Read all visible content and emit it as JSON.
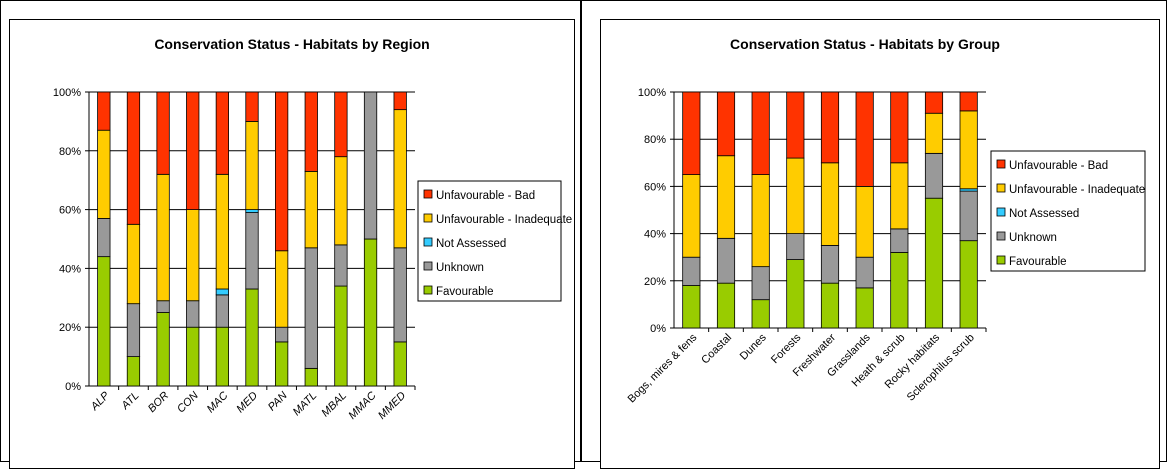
{
  "colors": {
    "Unfavourable - Bad": "#ff3300",
    "Unfavourable - Inadequate": "#ffcc00",
    "Not Assessed": "#33ccff",
    "Unknown": "#999999",
    "Favourable": "#99cc00"
  },
  "chart_data": [
    {
      "type": "bar",
      "stacked": true,
      "title": "Conservation Status - Habitats by Region",
      "categories": [
        "ALP",
        "ATL",
        "BOR",
        "CON",
        "MAC",
        "MED",
        "PAN",
        "MATL",
        "MBAL",
        "MMAC",
        "MMED"
      ],
      "yticks": [
        "0%",
        "20%",
        "40%",
        "60%",
        "80%",
        "100%"
      ],
      "ylim": [
        0,
        100
      ],
      "legend_position": "right",
      "series": [
        {
          "name": "Favourable",
          "values": [
            44,
            10,
            25,
            20,
            20,
            33,
            15,
            6,
            34,
            50,
            15
          ]
        },
        {
          "name": "Unknown",
          "values": [
            13,
            18,
            4,
            9,
            11,
            26,
            5,
            41,
            14,
            50,
            32
          ]
        },
        {
          "name": "Not Assessed",
          "values": [
            0,
            0,
            0,
            0,
            2,
            1,
            0,
            0,
            0,
            0,
            0
          ]
        },
        {
          "name": "Unfavourable - Inadequate",
          "values": [
            30,
            27,
            43,
            31,
            39,
            30,
            26,
            26,
            30,
            0,
            47
          ]
        },
        {
          "name": "Unfavourable - Bad",
          "values": [
            13,
            45,
            28,
            40,
            28,
            10,
            54,
            27,
            22,
            0,
            6
          ]
        }
      ]
    },
    {
      "type": "bar",
      "stacked": true,
      "title": "Conservation Status - Habitats by Group",
      "categories": [
        "Bogs, mires & fens",
        "Coastal",
        "Dunes",
        "Forests",
        "Freshwater",
        "Grasslands",
        "Heath & scrub",
        "Rocky habitats",
        "Sclerophilus scrub"
      ],
      "yticks": [
        "0%",
        "20%",
        "40%",
        "60%",
        "80%",
        "100%"
      ],
      "ylim": [
        0,
        100
      ],
      "legend_position": "right",
      "series": [
        {
          "name": "Favourable",
          "values": [
            18,
            19,
            12,
            29,
            19,
            17,
            32,
            55,
            37
          ]
        },
        {
          "name": "Unknown",
          "values": [
            12,
            19,
            14,
            11,
            16,
            13,
            10,
            19,
            21
          ]
        },
        {
          "name": "Not Assessed",
          "values": [
            0,
            0,
            0,
            0,
            0,
            0,
            0,
            0,
            1
          ]
        },
        {
          "name": "Unfavourable - Inadequate",
          "values": [
            35,
            35,
            39,
            32,
            35,
            30,
            28,
            17,
            33
          ]
        },
        {
          "name": "Unfavourable - Bad",
          "values": [
            35,
            27,
            35,
            28,
            30,
            40,
            30,
            9,
            8
          ]
        }
      ]
    }
  ]
}
